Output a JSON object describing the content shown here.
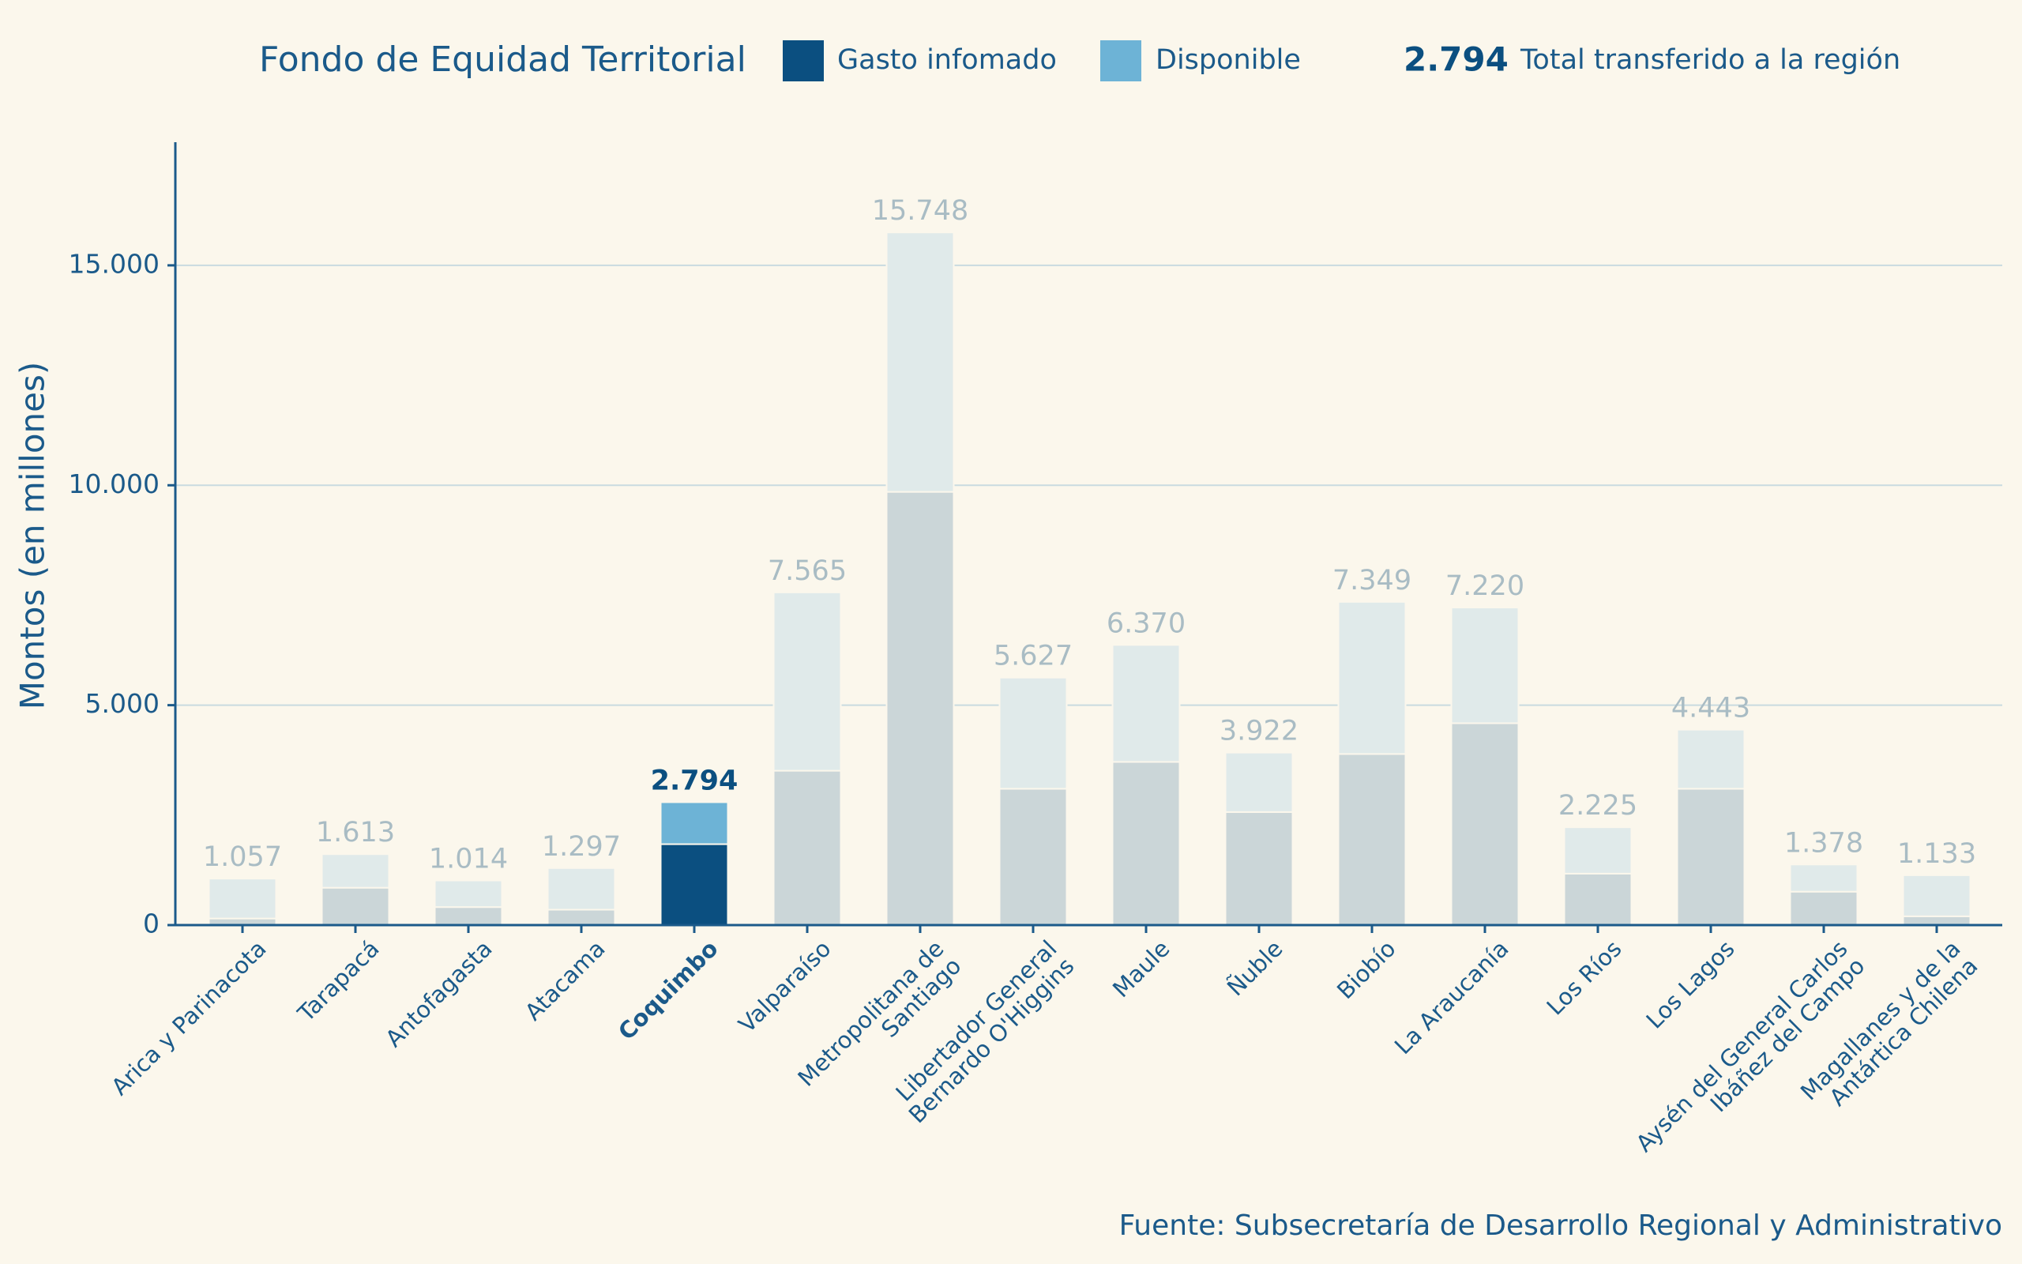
{
  "chart_data": {
    "type": "stacked_bar",
    "title": "Fondo de Equidad Territorial",
    "y_label": "Montos (en millones)",
    "source": "Fuente: Subsecretaría de Desarrollo Regional y Administrativo",
    "legend_total_text": "Total transferido a la región",
    "categories": [
      "Arica y Parinacota",
      "Tarapacá",
      "Antofagasta",
      "Atacama",
      "Coquimbo",
      "Valparaíso",
      "Metropolitana de\nSantiago",
      "Libertador General\nBernardo O'Higgins",
      "Maule",
      "Ñuble",
      "Biobío",
      "La Araucanía",
      "Los Ríos",
      "Los Lagos",
      "Aysén del General Carlos\nIbáñez del Campo",
      "Magallanes y de la\nAntártica Chilena"
    ],
    "highlight_index": 4,
    "series": [
      {
        "name": "Gasto infomado",
        "color": "#0b4f80",
        "muted_color": "#cbd6d8",
        "values": [
          150,
          850,
          410,
          350,
          1840,
          3510,
          9850,
          3100,
          3710,
          2570,
          3890,
          4590,
          1170,
          3100,
          760,
          200
        ]
      },
      {
        "name": "Disponible",
        "color": "#6db3d6",
        "muted_color": "#e0eaea",
        "values": [
          907,
          763,
          604,
          947,
          954,
          4055,
          5898,
          2527,
          2660,
          1352,
          3459,
          2630,
          1055,
          1343,
          618,
          933
        ]
      }
    ],
    "totals": [
      1057,
      1613,
      1014,
      1297,
      2794,
      7565,
      15748,
      5627,
      6370,
      3922,
      7349,
      7220,
      2225,
      4443,
      1378,
      1133
    ],
    "value_labels": [
      "1.057",
      "1.613",
      "1.014",
      "1.297",
      "2.794",
      "7.565",
      "15.748",
      "5.627",
      "6.370",
      "3.922",
      "7.349",
      "7.220",
      "2.225",
      "4.443",
      "1.378",
      "1.133"
    ],
    "ylim": [
      0,
      17800
    ],
    "yticks": [
      {
        "value": 0,
        "label": "0"
      },
      {
        "value": 5000,
        "label": "5.000"
      },
      {
        "value": 10000,
        "label": "10.000"
      },
      {
        "value": 15000,
        "label": "15.000"
      }
    ],
    "grid": true
  }
}
